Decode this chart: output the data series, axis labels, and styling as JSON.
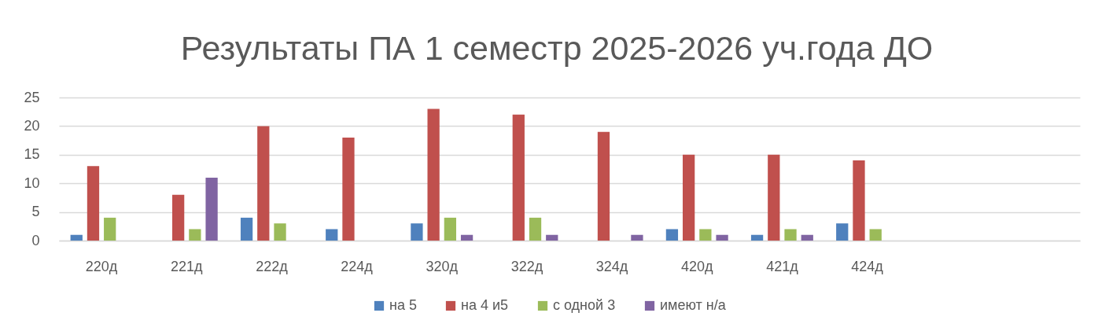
{
  "chart_data": {
    "type": "bar",
    "title": "Результаты ПА 1 семестр 2025-2026 уч.года ДО",
    "categories": [
      "220д",
      "221д",
      "222д",
      "224д",
      "320д",
      "322д",
      "324д",
      "420д",
      "421д",
      "424д",
      null,
      null
    ],
    "series": [
      {
        "name": "на 5",
        "color": "#4f81bd",
        "values": [
          1,
          null,
          4,
          2,
          3,
          null,
          null,
          2,
          1,
          3,
          null,
          null
        ]
      },
      {
        "name": "на 4 и5",
        "color": "#c0504d",
        "values": [
          13,
          8,
          20,
          18,
          23,
          22,
          19,
          15,
          15,
          14,
          null,
          null
        ]
      },
      {
        "name": "с одной 3",
        "color": "#9bbb59",
        "values": [
          4,
          2,
          3,
          null,
          4,
          4,
          null,
          2,
          2,
          2,
          null,
          null
        ]
      },
      {
        "name": "имеют н/а",
        "color": "#8064a2",
        "values": [
          null,
          11,
          null,
          null,
          1,
          1,
          1,
          1,
          1,
          null,
          null,
          null
        ]
      }
    ],
    "ylim": [
      0,
      25
    ],
    "yticks": [
      0,
      5,
      10,
      15,
      20,
      25
    ],
    "grid": true,
    "legend": "bottom"
  }
}
